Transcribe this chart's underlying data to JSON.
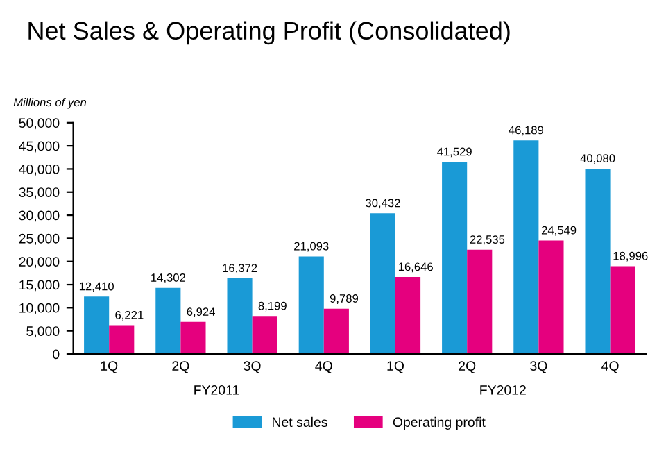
{
  "chart_data": {
    "type": "bar",
    "title": "Net Sales & Operating Profit (Consolidated)",
    "ylabel": "Millions of yen",
    "categories": [
      "1Q",
      "2Q",
      "3Q",
      "4Q",
      "1Q",
      "2Q",
      "3Q",
      "4Q"
    ],
    "series": [
      {
        "name": "Net sales",
        "color": "#1a9ad6",
        "values": [
          12410,
          14302,
          16372,
          21093,
          30432,
          41529,
          46189,
          40080
        ],
        "value_labels": [
          "12,410",
          "14,302",
          "16,372",
          "21,093",
          "30,432",
          "41,529",
          "46,189",
          "40,080"
        ]
      },
      {
        "name": "Operating profit",
        "color": "#e5007e",
        "values": [
          6221,
          6924,
          8199,
          9789,
          16646,
          22535,
          24549,
          18996
        ],
        "value_labels": [
          "6,221",
          "6,924",
          "8,199",
          "9,789",
          "16,646",
          "22,535",
          "24,549",
          "18,996"
        ]
      }
    ],
    "ylim": [
      0,
      50000
    ],
    "yticks": [
      0,
      {
        "value": 5000,
        "label": "5,000"
      },
      {
        "value": 10000,
        "label": "10,000"
      },
      {
        "value": 15000,
        "label": "15,000"
      },
      {
        "value": 20000,
        "label": "20,000"
      },
      {
        "value": 25000,
        "label": "25,000"
      },
      {
        "value": 30000,
        "label": "30,000"
      },
      {
        "value": 35000,
        "label": "35,000"
      },
      {
        "value": 40000,
        "label": "40,000"
      },
      {
        "value": 45000,
        "label": "45,000"
      },
      {
        "value": 50000,
        "label": "50,000"
      }
    ],
    "annotations": [
      "FY2011",
      "FY2012"
    ],
    "legend": "bottom",
    "grid": false
  }
}
